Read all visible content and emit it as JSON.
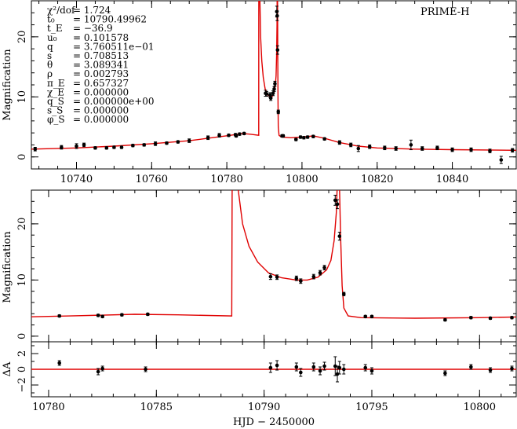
{
  "chart_data": {
    "type": "scatter",
    "observatory": "PRIME-H",
    "xlabel": "HJD − 2450000",
    "ylabel_top": "Magnification",
    "ylabel_mid": "Magnification",
    "ylabel_bottom": "ΔA",
    "params": [
      {
        "label": "χ²/dof",
        "value": "= 1.724"
      },
      {
        "label": "t₀",
        "value": "= 10790.49962"
      },
      {
        "label": "t_E",
        "value": "= −36.9"
      },
      {
        "label": "u₀",
        "value": "= 0.101578"
      },
      {
        "label": "q",
        "value": "= 3.760511e−01"
      },
      {
        "label": "s",
        "value": "= 0.708513"
      },
      {
        "label": "θ",
        "value": "= 3.089341"
      },
      {
        "label": "ρ",
        "value": "= 0.002793"
      },
      {
        "label": "π_E",
        "value": "= 0.657327"
      },
      {
        "label": "χ_E",
        "value": "= 0.000000"
      },
      {
        "label": "q_S",
        "value": "= 0.000000e+00"
      },
      {
        "label": "s_S",
        "value": "= 0.000000"
      },
      {
        "label": "φ_S",
        "value": "= 0.000000"
      }
    ],
    "top": {
      "xlim": [
        10728,
        10857
      ],
      "ylim": [
        -2,
        26
      ],
      "xticks": [
        10740,
        10760,
        10780,
        10800,
        10820,
        10840
      ],
      "yticks": [
        0,
        10,
        20
      ]
    },
    "mid": {
      "xlim": [
        10779.2,
        10801.7
      ],
      "ylim": [
        -1,
        26
      ],
      "xticks": [
        10780,
        10785,
        10790,
        10795,
        10800
      ],
      "yticks": [
        0,
        10,
        20
      ]
    },
    "resid": {
      "xlim": [
        10779.2,
        10801.7
      ],
      "ylim": [
        -3.5,
        3.5
      ],
      "yticks": [
        -2,
        0,
        2
      ]
    },
    "points": [
      {
        "x": 10729,
        "y": 1.3,
        "e": 0.3
      },
      {
        "x": 10736,
        "y": 1.6,
        "e": 0.3
      },
      {
        "x": 10740,
        "y": 1.8,
        "e": 0.4
      },
      {
        "x": 10742,
        "y": 2.0,
        "e": 0.3
      },
      {
        "x": 10745,
        "y": 1.5,
        "e": 0.2
      },
      {
        "x": 10748,
        "y": 1.5,
        "e": 0.2
      },
      {
        "x": 10750,
        "y": 1.6,
        "e": 0.2
      },
      {
        "x": 10752,
        "y": 1.6,
        "e": 0.2
      },
      {
        "x": 10755,
        "y": 1.9,
        "e": 0.2
      },
      {
        "x": 10758,
        "y": 2.0,
        "e": 0.2
      },
      {
        "x": 10761,
        "y": 2.2,
        "e": 0.3
      },
      {
        "x": 10764,
        "y": 2.3,
        "e": 0.2
      },
      {
        "x": 10767,
        "y": 2.5,
        "e": 0.2
      },
      {
        "x": 10770,
        "y": 2.7,
        "e": 0.3
      },
      {
        "x": 10775,
        "y": 3.2,
        "e": 0.3
      },
      {
        "x": 10778,
        "y": 3.6,
        "e": 0.3
      },
      {
        "x": 10780.5,
        "y": 3.6,
        "e": 0.2
      },
      {
        "x": 10782.3,
        "y": 3.7,
        "e": 0.2
      },
      {
        "x": 10782.5,
        "y": 3.5,
        "e": 0.2
      },
      {
        "x": 10783.4,
        "y": 3.8,
        "e": 0.2
      },
      {
        "x": 10784.6,
        "y": 3.9,
        "e": 0.2
      },
      {
        "x": 10790.3,
        "y": 10.6,
        "e": 0.5
      },
      {
        "x": 10790.6,
        "y": 10.5,
        "e": 0.4
      },
      {
        "x": 10791.5,
        "y": 10.3,
        "e": 0.4
      },
      {
        "x": 10791.7,
        "y": 9.8,
        "e": 0.4
      },
      {
        "x": 10792.3,
        "y": 10.6,
        "e": 0.4
      },
      {
        "x": 10792.6,
        "y": 11.3,
        "e": 0.4
      },
      {
        "x": 10792.8,
        "y": 12.2,
        "e": 0.4
      },
      {
        "x": 10793.3,
        "y": 24.2,
        "e": 0.9
      },
      {
        "x": 10793.4,
        "y": 23.5,
        "e": 0.8
      },
      {
        "x": 10793.5,
        "y": 17.8,
        "e": 0.7
      },
      {
        "x": 10793.7,
        "y": 7.5,
        "e": 0.3
      },
      {
        "x": 10794.7,
        "y": 3.5,
        "e": 0.2
      },
      {
        "x": 10795.0,
        "y": 3.5,
        "e": 0.2
      },
      {
        "x": 10798.4,
        "y": 2.9,
        "e": 0.2
      },
      {
        "x": 10799.6,
        "y": 3.3,
        "e": 0.2
      },
      {
        "x": 10800.5,
        "y": 3.2,
        "e": 0.2
      },
      {
        "x": 10801.5,
        "y": 3.3,
        "e": 0.2
      },
      {
        "x": 10803,
        "y": 3.4,
        "e": 0.2
      },
      {
        "x": 10806,
        "y": 3.0,
        "e": 0.2
      },
      {
        "x": 10810,
        "y": 2.4,
        "e": 0.3
      },
      {
        "x": 10813,
        "y": 2.0,
        "e": 0.3
      },
      {
        "x": 10815,
        "y": 1.4,
        "e": 0.5
      },
      {
        "x": 10818,
        "y": 1.7,
        "e": 0.3
      },
      {
        "x": 10822,
        "y": 1.5,
        "e": 0.3
      },
      {
        "x": 10825,
        "y": 1.4,
        "e": 0.3
      },
      {
        "x": 10829,
        "y": 2.0,
        "e": 0.8
      },
      {
        "x": 10832,
        "y": 1.4,
        "e": 0.3
      },
      {
        "x": 10836,
        "y": 1.5,
        "e": 0.3
      },
      {
        "x": 10840,
        "y": 1.2,
        "e": 0.3
      },
      {
        "x": 10845,
        "y": 1.2,
        "e": 0.3
      },
      {
        "x": 10850,
        "y": 1.0,
        "e": 0.3
      },
      {
        "x": 10853,
        "y": -0.5,
        "e": 0.6
      },
      {
        "x": 10856,
        "y": 1.1,
        "e": 0.3
      }
    ],
    "residuals": [
      {
        "x": 10780.5,
        "y": 0.8,
        "e": 0.3
      },
      {
        "x": 10782.3,
        "y": -0.3,
        "e": 0.4
      },
      {
        "x": 10782.5,
        "y": 0.1,
        "e": 0.3
      },
      {
        "x": 10784.5,
        "y": 0.0,
        "e": 0.3
      },
      {
        "x": 10790.3,
        "y": 0.2,
        "e": 0.6
      },
      {
        "x": 10790.6,
        "y": 0.5,
        "e": 0.6
      },
      {
        "x": 10791.5,
        "y": 0.3,
        "e": 0.5
      },
      {
        "x": 10791.7,
        "y": -0.4,
        "e": 0.5
      },
      {
        "x": 10792.3,
        "y": 0.3,
        "e": 0.5
      },
      {
        "x": 10792.6,
        "y": -0.2,
        "e": 0.5
      },
      {
        "x": 10792.8,
        "y": 0.4,
        "e": 0.5
      },
      {
        "x": 10793.3,
        "y": 0.4,
        "e": 1.2
      },
      {
        "x": 10793.4,
        "y": -0.6,
        "e": 1.0
      },
      {
        "x": 10793.5,
        "y": 0.2,
        "e": 0.8
      },
      {
        "x": 10793.7,
        "y": 0.0,
        "e": 0.6
      },
      {
        "x": 10794.7,
        "y": 0.2,
        "e": 0.4
      },
      {
        "x": 10795.0,
        "y": -0.2,
        "e": 0.4
      },
      {
        "x": 10798.4,
        "y": -0.5,
        "e": 0.3
      },
      {
        "x": 10799.6,
        "y": 0.3,
        "e": 0.3
      },
      {
        "x": 10800.5,
        "y": -0.1,
        "e": 0.3
      },
      {
        "x": 10801.5,
        "y": 0.1,
        "e": 0.3
      }
    ],
    "model": [
      [
        10728,
        1.3
      ],
      [
        10740,
        1.5
      ],
      [
        10750,
        1.8
      ],
      [
        10760,
        2.2
      ],
      [
        10770,
        2.7
      ],
      [
        10776,
        3.2
      ],
      [
        10781,
        3.6
      ],
      [
        10784,
        3.9
      ],
      [
        10786,
        3.8
      ],
      [
        10788.5,
        3.6
      ],
      [
        10788.52,
        30
      ],
      [
        10788.8,
        26
      ],
      [
        10789,
        20
      ],
      [
        10789.3,
        16
      ],
      [
        10789.7,
        13.2
      ],
      [
        10790.2,
        11.3
      ],
      [
        10790.8,
        10.4
      ],
      [
        10791.5,
        10.0
      ],
      [
        10792.0,
        10.0
      ],
      [
        10792.5,
        10.5
      ],
      [
        10792.9,
        11.8
      ],
      [
        10793.1,
        13.5
      ],
      [
        10793.25,
        17
      ],
      [
        10793.35,
        22
      ],
      [
        10793.42,
        30
      ],
      [
        10793.48,
        30
      ],
      [
        10793.55,
        18
      ],
      [
        10793.62,
        9
      ],
      [
        10793.7,
        5
      ],
      [
        10793.9,
        3.6
      ],
      [
        10794.5,
        3.3
      ],
      [
        10797,
        3.2
      ],
      [
        10800,
        3.3
      ],
      [
        10803,
        3.5
      ],
      [
        10806,
        3.1
      ],
      [
        10810,
        2.4
      ],
      [
        10815,
        1.8
      ],
      [
        10820,
        1.5
      ],
      [
        10830,
        1.3
      ],
      [
        10840,
        1.2
      ],
      [
        10857,
        1.1
      ]
    ]
  }
}
